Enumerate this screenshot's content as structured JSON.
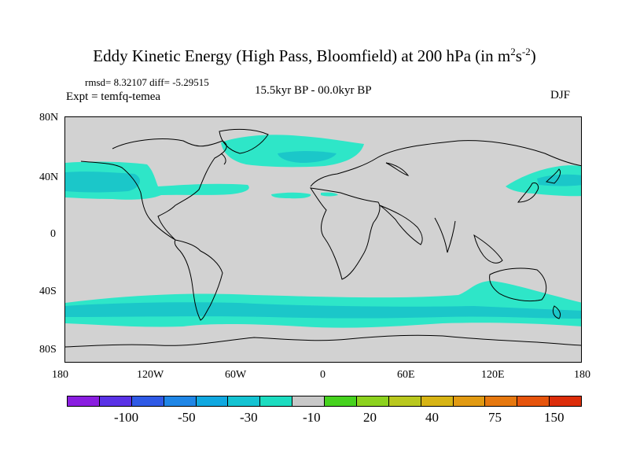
{
  "title": {
    "main": "Eddy Kinetic Energy (High Pass, Bloomfield) at 200 hPa (in m",
    "sup1": "2",
    "mid": "s",
    "sup2": "-2",
    "tail": ")"
  },
  "stats": "rmsd= 8.32107 diff= -5.29515",
  "period": "15.5kyr BP - 00.0kyr BP",
  "experiment": "Expt = temfq-temea",
  "season": "DJF",
  "lat_ticks": [
    "80N",
    "40N",
    "0",
    "40S",
    "80S"
  ],
  "lon_ticks": [
    "180",
    "120W",
    "60W",
    "0",
    "60E",
    "120E",
    "180"
  ],
  "colors": {
    "land_ocean": "#d2d2d2",
    "anomaly_fill": "#2ee6c8",
    "anomaly_core": "#1bc7c9",
    "coast": "#000000"
  },
  "colorbar": {
    "colors": [
      "#8a1ee0",
      "#5a32e6",
      "#2f5ae6",
      "#1f86e6",
      "#10a8e0",
      "#14c3d2",
      "#1cdcc0",
      "#c8c8c8",
      "#46d21e",
      "#8cd21e",
      "#b9c81e",
      "#d7b414",
      "#e19a12",
      "#e6780f",
      "#e6540c",
      "#dc2d0a"
    ],
    "labels": [
      "-100",
      "-50",
      "-30",
      "-10",
      "20",
      "40",
      "75",
      "150"
    ]
  }
}
